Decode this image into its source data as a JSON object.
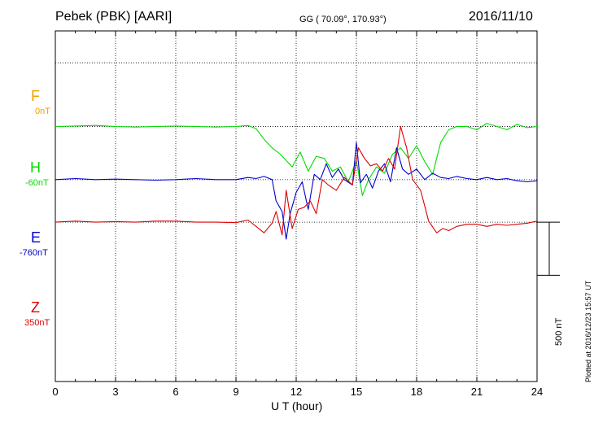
{
  "header": {
    "station": "Pebek (PBK)  [AARI]",
    "coords": "GG ( 70.09°, 170.93°)",
    "date": "2016/11/10"
  },
  "components": [
    {
      "name": "F",
      "baseline": "0nT",
      "color": "#f0a000"
    },
    {
      "name": "H",
      "baseline": "-60nT",
      "color": "#00dd00"
    },
    {
      "name": "E",
      "baseline": "-760nT",
      "color": "#0000cc"
    },
    {
      "name": "Z",
      "baseline": "350nT",
      "color": "#dd0000"
    }
  ],
  "scale_bar": {
    "label": "500 nT"
  },
  "footer": {
    "plotted": "Plotted at 2016/12/23 15:57 UT"
  },
  "chart_data": {
    "type": "line",
    "title": "Pebek (PBK)  [AARI]",
    "xlabel": "U T (hour)",
    "ylabel": "",
    "xlim": [
      0,
      24
    ],
    "xticks": [
      0,
      3,
      6,
      9,
      12,
      15,
      18,
      21,
      24
    ],
    "ylim": [
      -1500,
      1800
    ],
    "grid": true,
    "series": [
      {
        "name": "H",
        "color": "#00dd00",
        "x": [
          0,
          1,
          2,
          3,
          4,
          5,
          6,
          7,
          8,
          9,
          9.6,
          10,
          10.4,
          10.8,
          11.2,
          11.5,
          11.8,
          12.2,
          12.6,
          13,
          13.4,
          13.8,
          14.2,
          14.6,
          15,
          15.3,
          15.6,
          16,
          16.4,
          16.8,
          17.2,
          17.6,
          18,
          18.4,
          18.8,
          19.2,
          19.6,
          20,
          20.5,
          21,
          21.5,
          22,
          22.5,
          23,
          23.5,
          24
        ],
        "y": [
          0,
          5,
          10,
          0,
          -5,
          0,
          5,
          0,
          -5,
          0,
          10,
          -20,
          -120,
          -200,
          -260,
          -320,
          -380,
          -240,
          -420,
          -280,
          -300,
          -420,
          -380,
          -520,
          -320,
          -650,
          -500,
          -380,
          -440,
          -260,
          -200,
          -300,
          -180,
          -330,
          -450,
          -150,
          -30,
          0,
          0,
          -30,
          30,
          0,
          -30,
          20,
          -10,
          0
        ]
      },
      {
        "name": "E",
        "color": "#0000cc",
        "x": [
          0,
          1,
          2,
          3,
          4,
          5,
          6,
          7,
          8,
          9,
          9.6,
          10,
          10.4,
          10.8,
          11,
          11.3,
          11.5,
          11.7,
          12,
          12.3,
          12.6,
          12.9,
          13.2,
          13.5,
          13.8,
          14.1,
          14.4,
          14.8,
          15,
          15.2,
          15.5,
          15.8,
          16.1,
          16.4,
          16.7,
          17,
          17.3,
          17.6,
          18,
          18.4,
          18.8,
          19.2,
          19.6,
          20,
          20.5,
          21,
          21.5,
          22,
          22.5,
          23,
          23.5,
          24
        ],
        "y": [
          0,
          10,
          0,
          5,
          0,
          -5,
          0,
          10,
          0,
          0,
          20,
          10,
          30,
          0,
          -200,
          -300,
          -560,
          -320,
          -120,
          -20,
          -280,
          50,
          0,
          150,
          20,
          100,
          0,
          -50,
          350,
          -30,
          50,
          -80,
          80,
          150,
          -20,
          300,
          100,
          50,
          100,
          0,
          60,
          20,
          10,
          30,
          10,
          0,
          20,
          0,
          10,
          -10,
          -20,
          -10
        ]
      },
      {
        "name": "Z",
        "color": "#dd0000",
        "x": [
          0,
          1,
          2,
          3,
          4,
          5,
          6,
          7,
          8,
          9,
          9.6,
          10,
          10.4,
          10.8,
          11,
          11.3,
          11.5,
          11.8,
          12.1,
          12.4,
          12.7,
          13,
          13.3,
          13.6,
          14,
          14.4,
          14.8,
          15.1,
          15.4,
          15.7,
          16,
          16.3,
          16.6,
          16.9,
          17.2,
          17.5,
          17.8,
          18.2,
          18.6,
          19,
          19.3,
          19.6,
          20,
          20.5,
          21,
          21.5,
          22,
          22.5,
          23,
          23.5,
          24
        ],
        "y": [
          0,
          10,
          0,
          5,
          0,
          10,
          10,
          0,
          0,
          -5,
          20,
          -40,
          -100,
          -10,
          100,
          -120,
          300,
          -60,
          120,
          140,
          200,
          80,
          400,
          350,
          300,
          420,
          350,
          700,
          600,
          530,
          550,
          480,
          600,
          500,
          900,
          700,
          400,
          300,
          10,
          -100,
          -60,
          -80,
          -40,
          -20,
          -20,
          -40,
          -20,
          -30,
          -20,
          -10,
          10
        ]
      }
    ],
    "series_baselines": {
      "F": 1500,
      "H": 900,
      "E": 400,
      "Z": 0
    },
    "scale_bar_nT": 500
  }
}
